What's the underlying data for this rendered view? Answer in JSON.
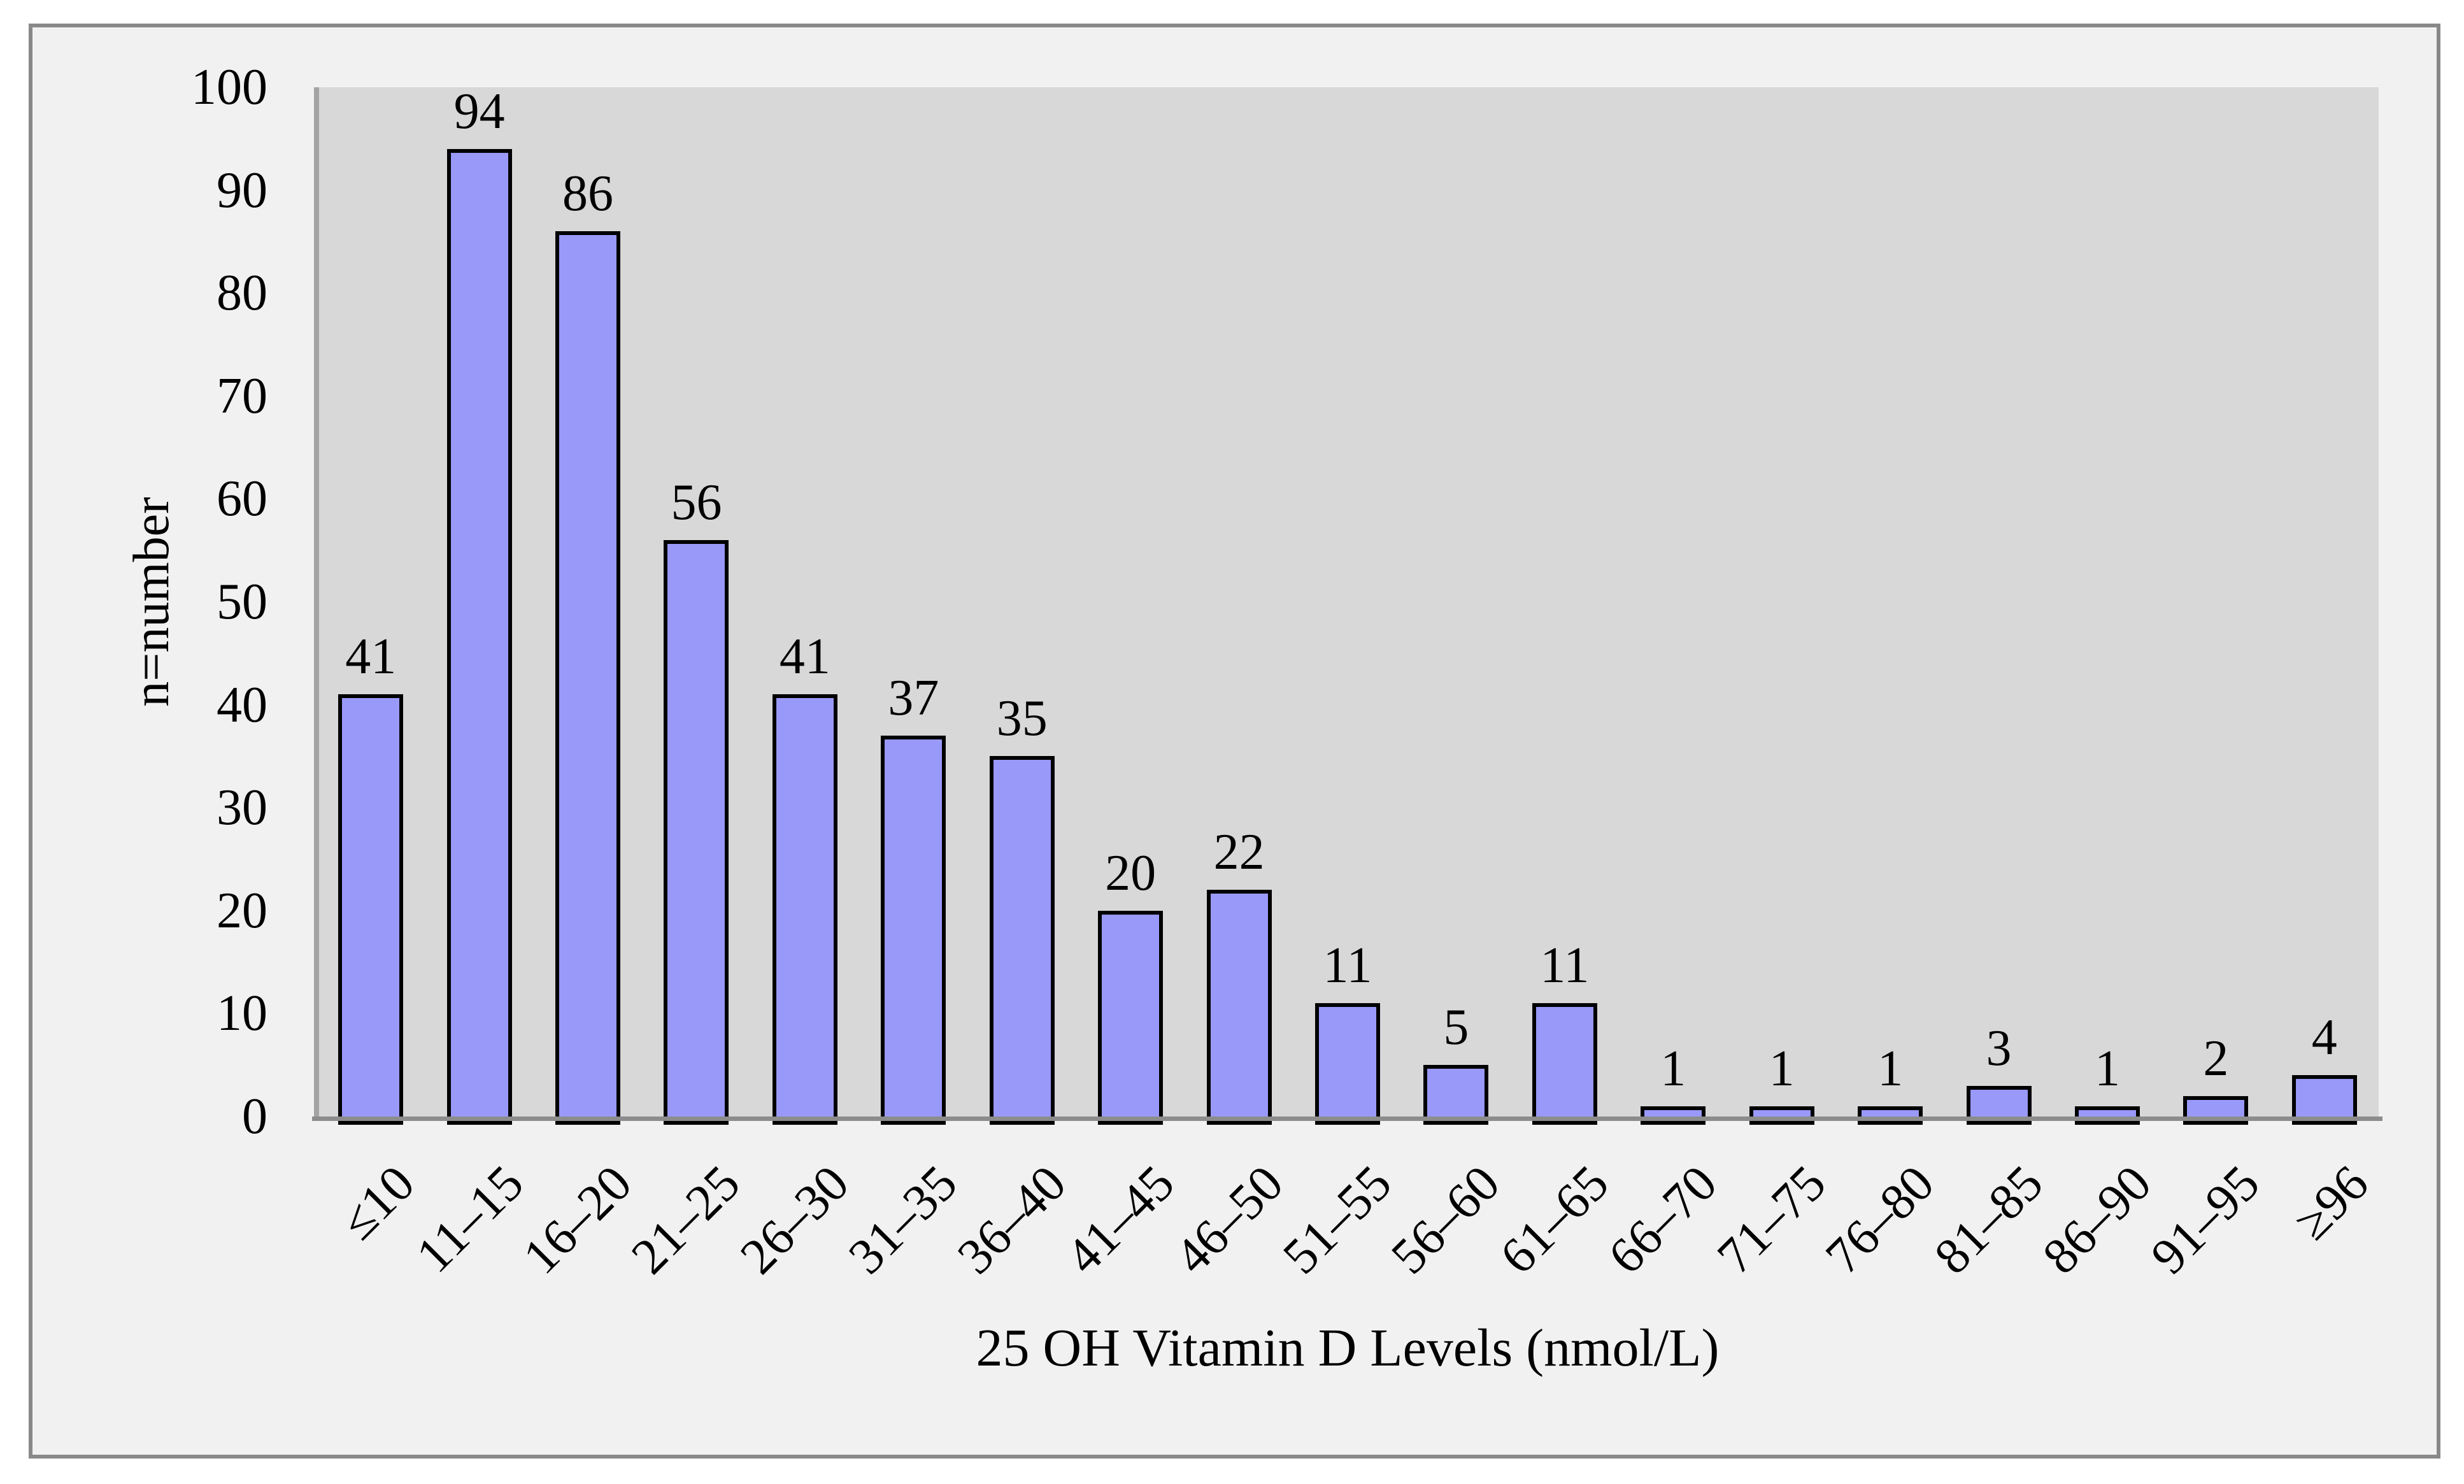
{
  "figure": {
    "page_background": "#ffffff",
    "panel_background": "#f1f1f1",
    "panel_border_color": "#898989"
  },
  "chart_data": {
    "type": "bar",
    "title": "",
    "categories": [
      "≤10",
      "11–15",
      "16–20",
      "21–25",
      "26–30",
      "31–35",
      "36–40",
      "41–45",
      "46–50",
      "51–55",
      "56–60",
      "61–65",
      "66–70",
      "71–75",
      "76–80",
      "81–85",
      "86–90",
      "91–95",
      "≥96"
    ],
    "values": [
      41,
      94,
      86,
      56,
      41,
      37,
      35,
      20,
      22,
      11,
      5,
      11,
      1,
      1,
      1,
      3,
      1,
      2,
      4
    ],
    "data_labels": [
      "41",
      "94",
      "86",
      "56",
      "41",
      "37",
      "35",
      "20",
      "22",
      "11",
      "5",
      "11",
      "1",
      "1",
      "1",
      "3",
      "1",
      "2",
      "4"
    ],
    "xlabel": "25 OH Vitamin D Levels (nmol/L)",
    "ylabel": "n=number",
    "ylim": [
      0,
      100
    ],
    "ytick_step": 10,
    "ytick_labels": [
      "0",
      "10",
      "20",
      "30",
      "40",
      "50",
      "60",
      "70",
      "80",
      "90",
      "100"
    ],
    "grid": false,
    "legend_position": "none",
    "bar_color": "#9999fa",
    "bar_border_color": "#000000",
    "plot_background": "#d8d8d8",
    "x_axis_line_color": "#8c8c8c",
    "y_axis_line_color": "#a3a3a3",
    "category_label_rotation_deg": 45
  }
}
